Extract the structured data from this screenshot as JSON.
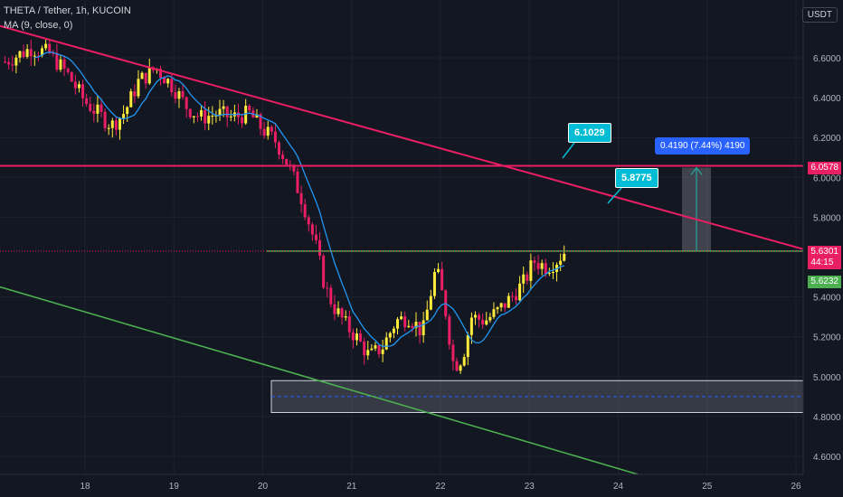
{
  "header": {
    "symbol_line": "THETA / Tether, 1h, KUCOIN",
    "indicator_line": "MA (9, close, 0)"
  },
  "currency_button": "USDT",
  "price_labels": {
    "resistance": "6.0578",
    "last_price": "5.6301",
    "countdown": "44:15",
    "ma_value": "5.6232"
  },
  "annotations": {
    "callout_1": "6.1029",
    "callout_2": "5.8775",
    "measure": "0.4190 (7.44%) 4190"
  },
  "colors": {
    "background": "#131722",
    "up_candle": "#ffeb3b",
    "down_candle": "#e91e63",
    "ma_line": "#2196f3",
    "trendline": "#e91e63",
    "support_line": "#4caf50",
    "callout": "#00bcd4",
    "measure_label": "#2962ff"
  },
  "chart_data": {
    "type": "candlestick",
    "title": "THETA / Tether, 1h, KUCOIN",
    "ylim": [
      4.5,
      6.75
    ],
    "y_ticks": [
      "6.6000",
      "6.4000",
      "6.2000",
      "6.0000",
      "5.8000",
      "5.4000",
      "5.2000",
      "5.0000",
      "4.8000",
      "4.6000"
    ],
    "x_ticks": [
      "18",
      "19",
      "20",
      "21",
      "22",
      "23",
      "24",
      "25",
      "26"
    ],
    "x_day_range": [
      17.1,
      26.1
    ],
    "close_path": [
      [
        17.1,
        6.58
      ],
      [
        17.4,
        6.65
      ],
      [
        17.6,
        6.62
      ],
      [
        17.8,
        6.52
      ],
      [
        18.0,
        6.38
      ],
      [
        18.15,
        6.32
      ],
      [
        18.3,
        6.26
      ],
      [
        18.45,
        6.33
      ],
      [
        18.6,
        6.48
      ],
      [
        18.8,
        6.55
      ],
      [
        19.0,
        6.45
      ],
      [
        19.15,
        6.35
      ],
      [
        19.3,
        6.3
      ],
      [
        19.5,
        6.32
      ],
      [
        19.65,
        6.3
      ],
      [
        19.85,
        6.32
      ],
      [
        20.0,
        6.24
      ],
      [
        20.15,
        6.18
      ],
      [
        20.3,
        6.05
      ],
      [
        20.45,
        5.88
      ],
      [
        20.6,
        5.65
      ],
      [
        20.7,
        5.45
      ],
      [
        20.8,
        5.35
      ],
      [
        20.95,
        5.25
      ],
      [
        21.05,
        5.2
      ],
      [
        21.2,
        5.1
      ],
      [
        21.35,
        5.15
      ],
      [
        21.5,
        5.28
      ],
      [
        21.65,
        5.3
      ],
      [
        21.8,
        5.22
      ],
      [
        21.95,
        5.55
      ],
      [
        22.05,
        5.35
      ],
      [
        22.15,
        5.05
      ],
      [
        22.25,
        5.1
      ],
      [
        22.35,
        5.3
      ],
      [
        22.5,
        5.28
      ],
      [
        22.65,
        5.33
      ],
      [
        22.8,
        5.4
      ],
      [
        22.95,
        5.48
      ],
      [
        23.05,
        5.58
      ],
      [
        23.2,
        5.55
      ],
      [
        23.3,
        5.58
      ],
      [
        23.4,
        5.63
      ]
    ],
    "ma_period": 9,
    "resistance_level": 6.0578,
    "last_price": 5.6301,
    "support_zone": [
      4.82,
      4.98
    ],
    "measure_range": [
      5.6301,
      6.0491
    ]
  }
}
